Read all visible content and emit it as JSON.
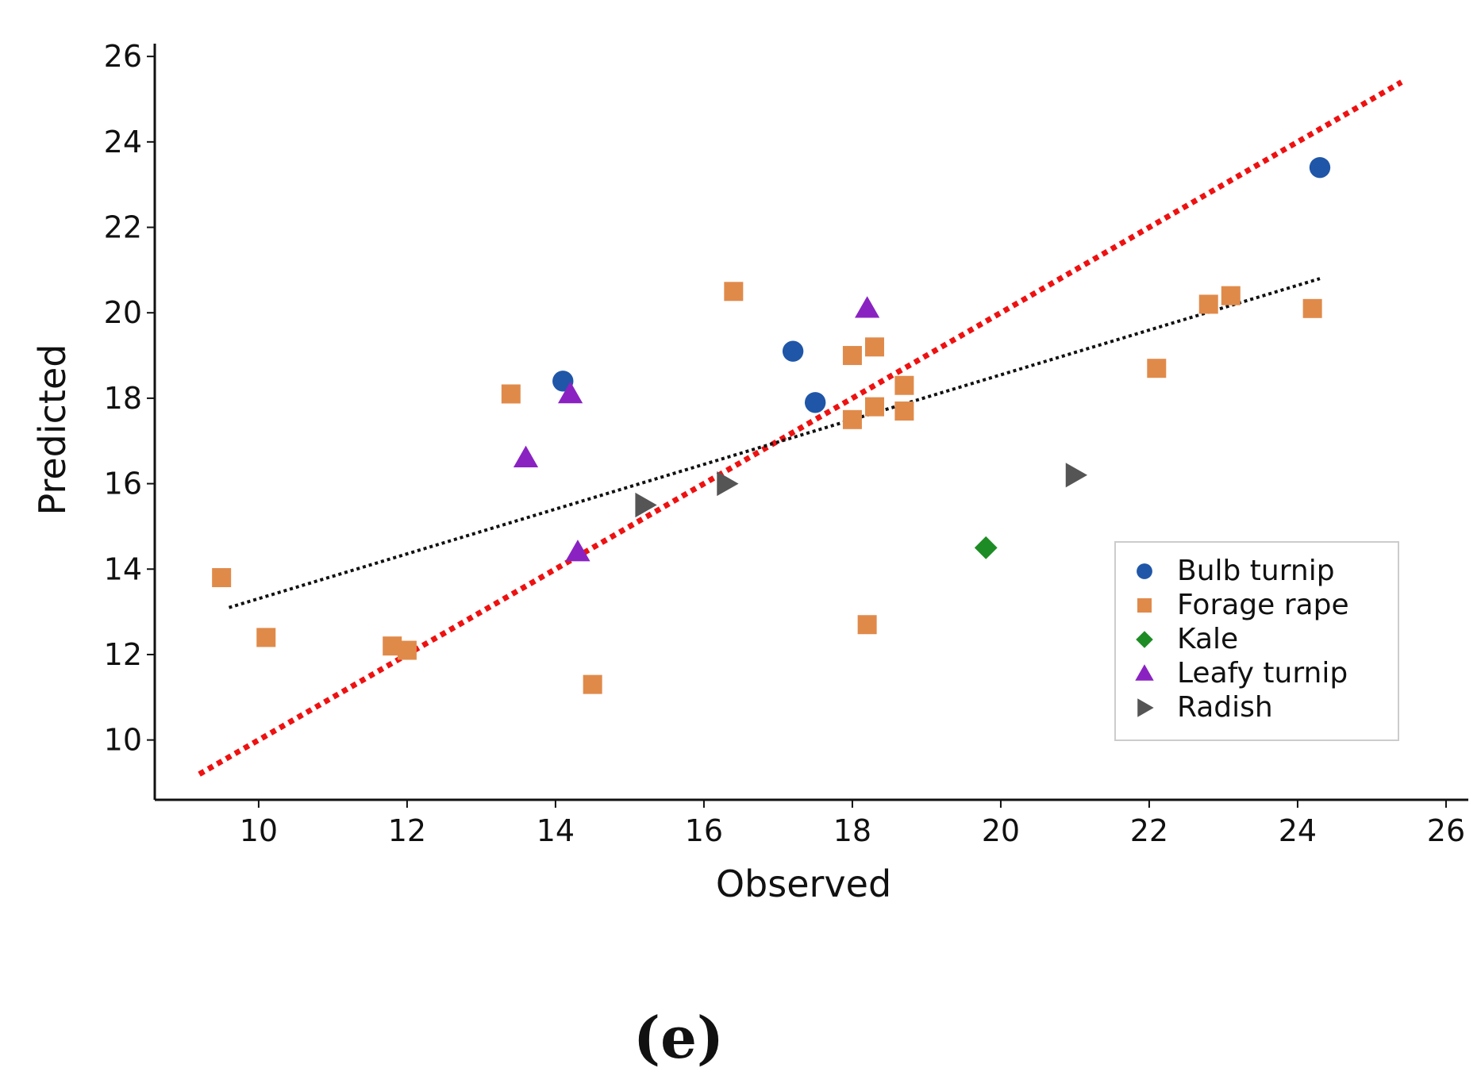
{
  "panel_label": "(e)",
  "chart_data": {
    "type": "scatter",
    "xlabel": "Observed",
    "ylabel": "Predicted",
    "xlim": [
      8.6,
      26.3
    ],
    "ylim": [
      8.6,
      26.3
    ],
    "xticks": [
      10,
      12,
      14,
      16,
      18,
      20,
      22,
      24,
      26
    ],
    "yticks": [
      10,
      12,
      14,
      16,
      18,
      20,
      22,
      24,
      26
    ],
    "legend_position": "lower-right",
    "series": [
      {
        "name": "Bulb turnip",
        "marker": "circle",
        "color": "#1f56a8",
        "points": [
          [
            14.1,
            18.4
          ],
          [
            17.2,
            19.1
          ],
          [
            17.5,
            17.9
          ],
          [
            24.3,
            23.4
          ]
        ]
      },
      {
        "name": "Forage rape",
        "marker": "square",
        "color": "#e08a4a",
        "points": [
          [
            9.5,
            13.8
          ],
          [
            10.1,
            12.4
          ],
          [
            11.8,
            12.2
          ],
          [
            12.0,
            12.1
          ],
          [
            13.4,
            18.1
          ],
          [
            14.5,
            11.3
          ],
          [
            16.4,
            20.5
          ],
          [
            18.0,
            17.5
          ],
          [
            18.0,
            19.0
          ],
          [
            18.3,
            19.2
          ],
          [
            18.3,
            17.8
          ],
          [
            18.7,
            17.7
          ],
          [
            18.7,
            18.3
          ],
          [
            18.2,
            12.7
          ],
          [
            22.1,
            18.7
          ],
          [
            22.8,
            20.2
          ],
          [
            23.1,
            20.4
          ],
          [
            24.2,
            20.1
          ]
        ]
      },
      {
        "name": "Kale",
        "marker": "diamond",
        "color": "#1e8c25",
        "points": [
          [
            19.8,
            14.5
          ]
        ]
      },
      {
        "name": "Leafy turnip",
        "marker": "triangle-up",
        "color": "#8a22c2",
        "points": [
          [
            13.6,
            16.6
          ],
          [
            14.2,
            18.1
          ],
          [
            14.3,
            14.4
          ],
          [
            18.2,
            20.1
          ]
        ]
      },
      {
        "name": "Radish",
        "marker": "triangle-right",
        "color": "#555555",
        "points": [
          [
            15.2,
            15.5
          ],
          [
            16.3,
            16.0
          ],
          [
            21.0,
            16.2
          ]
        ]
      }
    ],
    "lines": [
      {
        "name": "1:1 line",
        "style": "dotted",
        "color": "#ee1111",
        "x": [
          9.2,
          25.4
        ],
        "y": [
          9.2,
          25.4
        ]
      },
      {
        "name": "regression fit",
        "style": "dotted",
        "color": "#111111",
        "x": [
          9.6,
          24.3
        ],
        "y": [
          13.1,
          20.8
        ]
      }
    ]
  }
}
